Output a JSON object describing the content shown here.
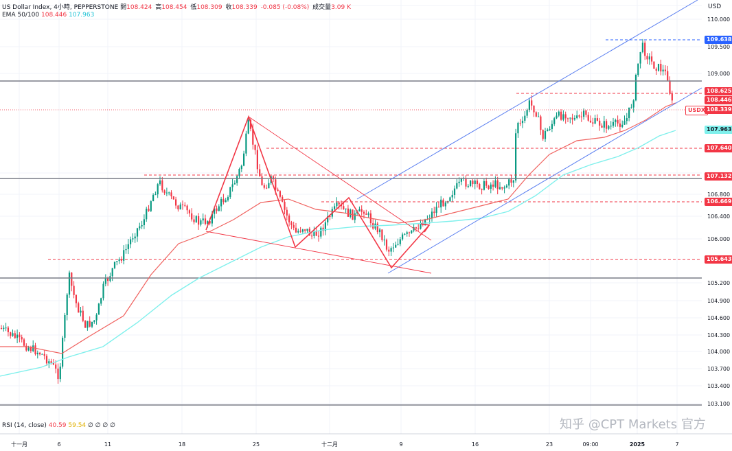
{
  "header": {
    "symbol": "US Dollar Index, 4小時, PEPPERSTONE",
    "open_label": "開",
    "open": "108.424",
    "high_label": "高",
    "high": "108.454",
    "low_label": "低",
    "low": "108.309",
    "close_label": "收",
    "close": "108.339",
    "change": "-0.085 (-0.08%)",
    "volume_label": "成交量",
    "volume": "3.09 K",
    "ema_label": "EMA 50/100",
    "ema50": "108.446",
    "ema100": "107.963"
  },
  "currency_label": "USD",
  "rsi": {
    "label": "RSI (14, close)",
    "v1": "40.59",
    "v2": "59.54",
    "rest": "∅ ∅ ∅ ∅"
  },
  "watermark": "知乎 @CPT Markets 官方",
  "colors": {
    "up": "#089981",
    "down": "#f23645",
    "ema50": "#f0625f",
    "ema100": "#7ff0ec",
    "channel": "#5b7ff0",
    "pattern": "#f23645"
  },
  "chart_data": {
    "type": "candlestick",
    "ylim": [
      103.0,
      110.3
    ],
    "y_ticks": [
      "110.000",
      "109.500",
      "109.000",
      "106.800",
      "106.400",
      "106.000",
      "105.200",
      "104.900",
      "104.600",
      "104.300",
      "104.000",
      "103.700",
      "103.400",
      "103.100"
    ],
    "x_ticks": [
      "十一月",
      "6",
      "11",
      "18",
      "25",
      "十二月",
      "9",
      "16",
      "23",
      "09:00",
      "2025",
      "7"
    ],
    "price_labels": [
      {
        "text": "109.638",
        "style": "blue"
      },
      {
        "text": "108.625",
        "style": "red"
      },
      {
        "text": "108.446",
        "style": "red"
      },
      {
        "text": "USDX",
        "style": "red"
      },
      {
        "text": "108.339",
        "style": "red"
      },
      {
        "text": "107.963",
        "style": "cyan"
      },
      {
        "text": "107.640",
        "style": "red"
      },
      {
        "text": "107.132",
        "style": "red"
      },
      {
        "text": "106.669",
        "style": "red"
      },
      {
        "text": "105.643",
        "style": "red"
      }
    ]
  }
}
